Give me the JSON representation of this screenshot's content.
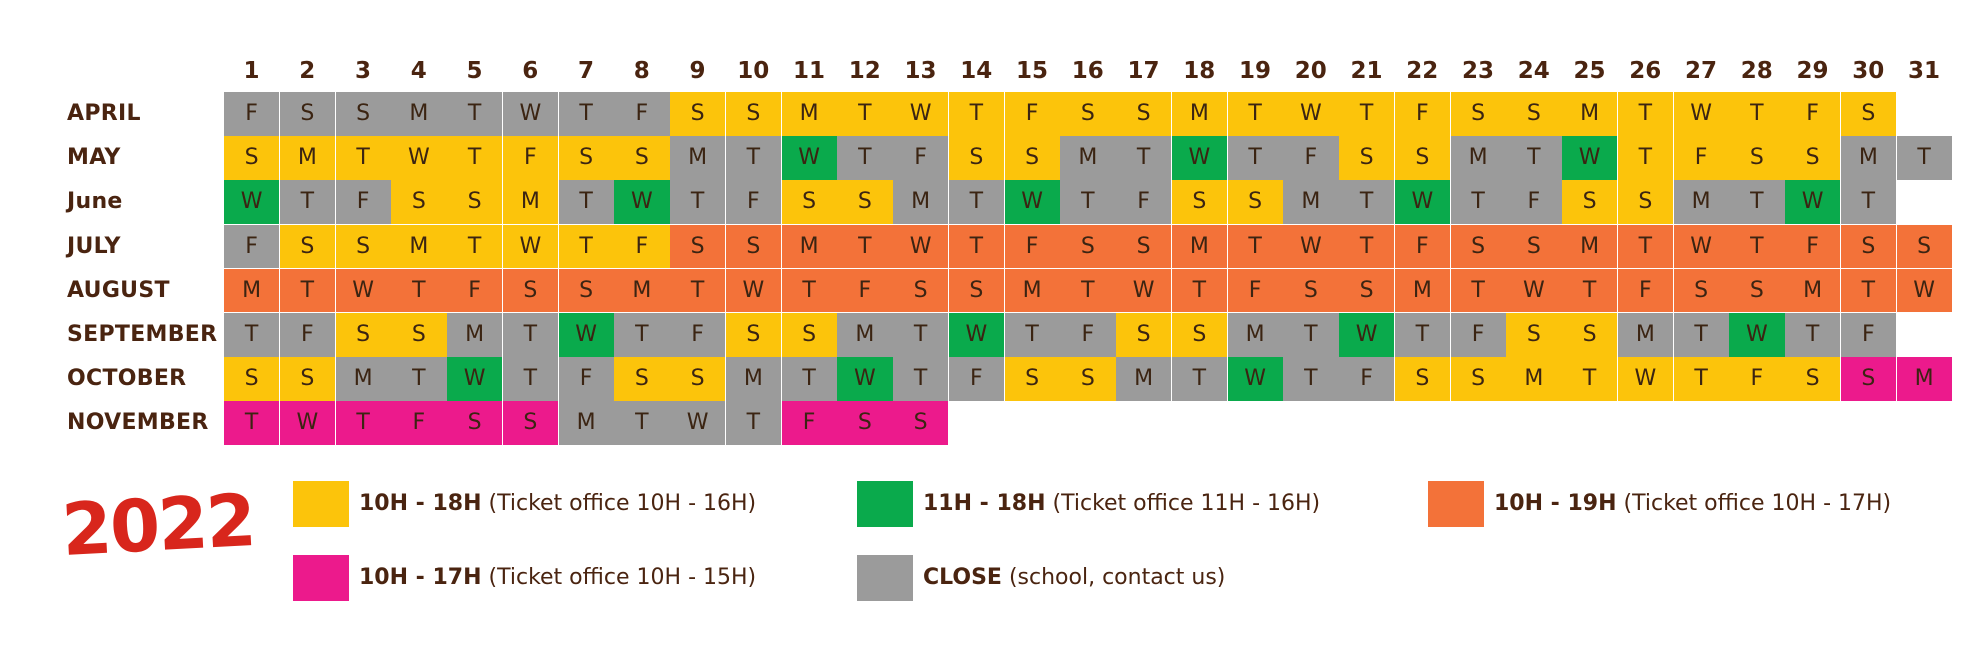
{
  "chart_data": {
    "type": "table",
    "year": "2022",
    "days": [
      "1",
      "2",
      "3",
      "4",
      "5",
      "6",
      "7",
      "8",
      "9",
      "10",
      "11",
      "12",
      "13",
      "14",
      "15",
      "16",
      "17",
      "18",
      "19",
      "20",
      "21",
      "22",
      "23",
      "24",
      "25",
      "26",
      "27",
      "28",
      "29",
      "30",
      "31"
    ],
    "colors": {
      "Y": "#fcc40b",
      "G": "#0aaa4c",
      "O": "#f37239",
      "P": "#ec1a8c",
      "C": "#9b9b9b"
    },
    "months": [
      {
        "name": "APRIL",
        "letters": [
          "F",
          "S",
          "S",
          "M",
          "T",
          "W",
          "T",
          "F",
          "S",
          "S",
          "M",
          "T",
          "W",
          "T",
          "F",
          "S",
          "S",
          "M",
          "T",
          "W",
          "T",
          "F",
          "S",
          "S",
          "M",
          "T",
          "W",
          "T",
          "F",
          "S"
        ],
        "status": [
          "C",
          "C",
          "C",
          "C",
          "C",
          "C",
          "C",
          "C",
          "Y",
          "Y",
          "Y",
          "Y",
          "Y",
          "Y",
          "Y",
          "Y",
          "Y",
          "Y",
          "Y",
          "Y",
          "Y",
          "Y",
          "Y",
          "Y",
          "Y",
          "Y",
          "Y",
          "Y",
          "Y",
          "Y"
        ]
      },
      {
        "name": "MAY",
        "letters": [
          "S",
          "M",
          "T",
          "W",
          "T",
          "F",
          "S",
          "S",
          "M",
          "T",
          "W",
          "T",
          "F",
          "S",
          "S",
          "M",
          "T",
          "W",
          "T",
          "F",
          "S",
          "S",
          "M",
          "T",
          "W",
          "T",
          "F",
          "S",
          "S",
          "M",
          "T"
        ],
        "status": [
          "Y",
          "Y",
          "Y",
          "Y",
          "Y",
          "Y",
          "Y",
          "Y",
          "C",
          "C",
          "G",
          "C",
          "C",
          "Y",
          "Y",
          "C",
          "C",
          "G",
          "C",
          "C",
          "Y",
          "Y",
          "C",
          "C",
          "G",
          "Y",
          "Y",
          "Y",
          "Y",
          "C",
          "C"
        ]
      },
      {
        "name": "June",
        "letters": [
          "W",
          "T",
          "F",
          "S",
          "S",
          "M",
          "T",
          "W",
          "T",
          "F",
          "S",
          "S",
          "M",
          "T",
          "W",
          "T",
          "F",
          "S",
          "S",
          "M",
          "T",
          "W",
          "T",
          "F",
          "S",
          "S",
          "M",
          "T",
          "W",
          "T"
        ],
        "status": [
          "G",
          "C",
          "C",
          "Y",
          "Y",
          "Y",
          "C",
          "G",
          "C",
          "C",
          "Y",
          "Y",
          "C",
          "C",
          "G",
          "C",
          "C",
          "Y",
          "Y",
          "C",
          "C",
          "G",
          "C",
          "C",
          "Y",
          "Y",
          "C",
          "C",
          "G",
          "C"
        ]
      },
      {
        "name": "JULY",
        "letters": [
          "F",
          "S",
          "S",
          "M",
          "T",
          "W",
          "T",
          "F",
          "S",
          "S",
          "M",
          "T",
          "W",
          "T",
          "F",
          "S",
          "S",
          "M",
          "T",
          "W",
          "T",
          "F",
          "S",
          "S",
          "M",
          "T",
          "W",
          "T",
          "F",
          "S",
          "S"
        ],
        "status": [
          "C",
          "Y",
          "Y",
          "Y",
          "Y",
          "Y",
          "Y",
          "Y",
          "O",
          "O",
          "O",
          "O",
          "O",
          "O",
          "O",
          "O",
          "O",
          "O",
          "O",
          "O",
          "O",
          "O",
          "O",
          "O",
          "O",
          "O",
          "O",
          "O",
          "O",
          "O",
          "O"
        ]
      },
      {
        "name": "AUGUST",
        "letters": [
          "M",
          "T",
          "W",
          "T",
          "F",
          "S",
          "S",
          "M",
          "T",
          "W",
          "T",
          "F",
          "S",
          "S",
          "M",
          "T",
          "W",
          "T",
          "F",
          "S",
          "S",
          "M",
          "T",
          "W",
          "T",
          "F",
          "S",
          "S",
          "M",
          "T",
          "W"
        ],
        "status": [
          "O",
          "O",
          "O",
          "O",
          "O",
          "O",
          "O",
          "O",
          "O",
          "O",
          "O",
          "O",
          "O",
          "O",
          "O",
          "O",
          "O",
          "O",
          "O",
          "O",
          "O",
          "O",
          "O",
          "O",
          "O",
          "O",
          "O",
          "O",
          "O",
          "O",
          "O"
        ]
      },
      {
        "name": "SEPTEMBER",
        "letters": [
          "T",
          "F",
          "S",
          "S",
          "M",
          "T",
          "W",
          "T",
          "F",
          "S",
          "S",
          "M",
          "T",
          "W",
          "T",
          "F",
          "S",
          "S",
          "M",
          "T",
          "W",
          "T",
          "F",
          "S",
          "S",
          "M",
          "T",
          "W",
          "T",
          "F"
        ],
        "status": [
          "C",
          "C",
          "Y",
          "Y",
          "C",
          "C",
          "G",
          "C",
          "C",
          "Y",
          "Y",
          "C",
          "C",
          "G",
          "C",
          "C",
          "Y",
          "Y",
          "C",
          "C",
          "G",
          "C",
          "C",
          "Y",
          "Y",
          "C",
          "C",
          "G",
          "C",
          "C"
        ]
      },
      {
        "name": "OCTOBER",
        "letters": [
          "S",
          "S",
          "M",
          "T",
          "W",
          "T",
          "F",
          "S",
          "S",
          "M",
          "T",
          "W",
          "T",
          "F",
          "S",
          "S",
          "M",
          "T",
          "W",
          "T",
          "F",
          "S",
          "S",
          "M",
          "T",
          "W",
          "T",
          "F",
          "S",
          "S",
          "M"
        ],
        "status": [
          "Y",
          "Y",
          "C",
          "C",
          "G",
          "C",
          "C",
          "Y",
          "Y",
          "C",
          "C",
          "G",
          "C",
          "C",
          "Y",
          "Y",
          "C",
          "C",
          "G",
          "C",
          "C",
          "Y",
          "Y",
          "Y",
          "Y",
          "Y",
          "Y",
          "Y",
          "Y",
          "P",
          "P"
        ]
      },
      {
        "name": "NOVEMBER",
        "letters": [
          "T",
          "W",
          "T",
          "F",
          "S",
          "S",
          "M",
          "T",
          "W",
          "T",
          "F",
          "S",
          "S"
        ],
        "status": [
          "P",
          "P",
          "P",
          "P",
          "P",
          "P",
          "C",
          "C",
          "C",
          "C",
          "P",
          "P",
          "P"
        ]
      }
    ],
    "legend": [
      {
        "key": "Y",
        "hours": "10H - 18H",
        "detail": "(Ticket office 10H - 16H)"
      },
      {
        "key": "G",
        "hours": "11H - 18H",
        "detail": "(Ticket office 11H - 16H)"
      },
      {
        "key": "O",
        "hours": "10H - 19H",
        "detail": "(Ticket office 10H - 17H)"
      },
      {
        "key": "P",
        "hours": "10H - 17H",
        "detail": "(Ticket office 10H - 15H)"
      },
      {
        "key": "C",
        "hours": "CLOSE",
        "detail": "(school, contact us)"
      }
    ]
  }
}
